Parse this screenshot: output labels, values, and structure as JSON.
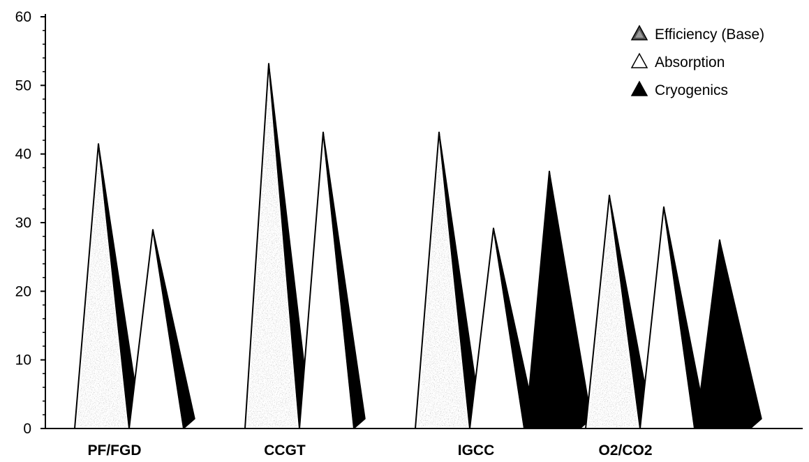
{
  "chart_data": {
    "type": "bar",
    "mark_shape": "3d-pyramid",
    "categories": [
      "PF/FGD",
      "CCGT",
      "IGCC",
      "O2/CO2"
    ],
    "series": [
      {
        "name": "Efficiency (Base)",
        "values": [
          41.5,
          53.2,
          43.2,
          34.0
        ],
        "fill": "speckled-gray"
      },
      {
        "name": "Absorption",
        "values": [
          29.0,
          43.2,
          29.2,
          32.3
        ],
        "fill": "white"
      },
      {
        "name": "Cryogenics",
        "values": [
          null,
          null,
          37.5,
          27.5
        ],
        "fill": "black"
      }
    ],
    "yticks": [
      0,
      10,
      20,
      30,
      40,
      50,
      60
    ],
    "ylim": [
      0,
      60
    ],
    "legend_position": "top-right",
    "grid": false,
    "colors": {
      "ink": "#000000",
      "speckle": "#8a8a8a",
      "background": "#ffffff"
    }
  }
}
